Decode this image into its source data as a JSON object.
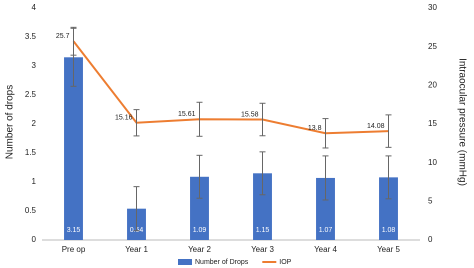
{
  "chart_data": {
    "type": "bar-line",
    "y_label": "Number of drops",
    "y2_label": "Intraocular pressure (mmHg)",
    "categories": [
      "Pre op",
      "Year 1",
      "Year 2",
      "Year 3",
      "Year 4",
      "Year 5"
    ],
    "series": [
      {
        "name": "Number of Drops",
        "type": "bar",
        "color": "#4472c4",
        "values": [
          3.15,
          0.54,
          1.09,
          1.15,
          1.07,
          1.08
        ],
        "errors": [
          0.5,
          0.38,
          0.37,
          0.37,
          0.38,
          0.37
        ]
      },
      {
        "name": "IOP",
        "type": "line",
        "axis": "y2",
        "color": "#ed7d31",
        "values": [
          25.7,
          15.16,
          15.61,
          15.58,
          13.8,
          14.08
        ],
        "errors": [
          1.8,
          1.7,
          2.2,
          2.1,
          1.9,
          2.1
        ]
      }
    ],
    "ylim": [
      0,
      4
    ],
    "yticks": [
      0,
      0.5,
      1,
      1.5,
      2,
      2.5,
      3,
      3.5,
      4
    ],
    "y2lim": [
      0,
      30
    ],
    "y2ticks": [
      0,
      5,
      10,
      15,
      20,
      25,
      30
    ],
    "legend": "bottom",
    "grid": false
  }
}
